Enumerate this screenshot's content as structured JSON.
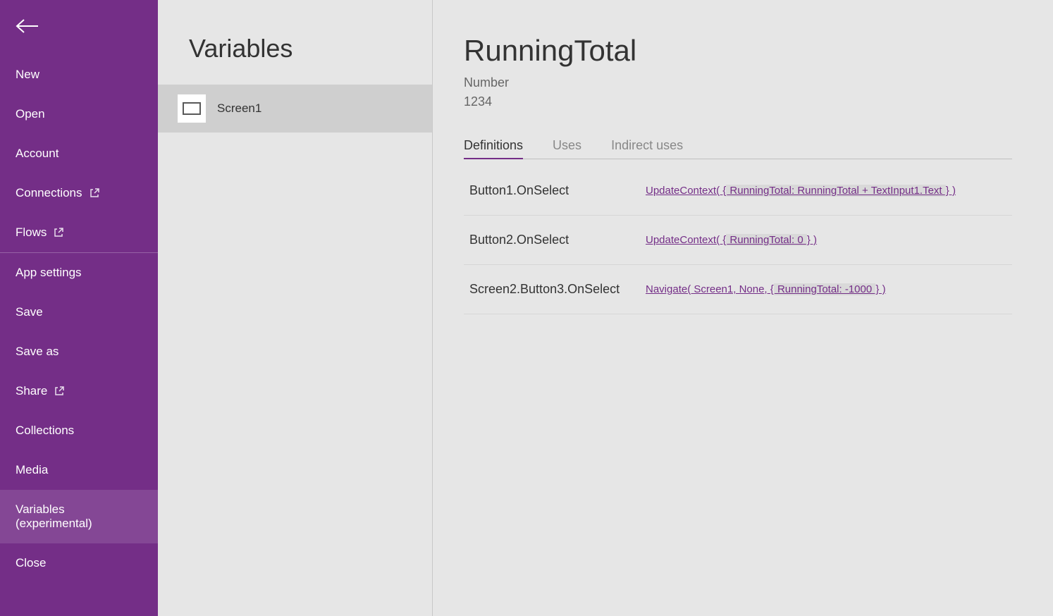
{
  "colors": {
    "sidebar_bg": "#742e87",
    "content_bg": "#e6e6e6",
    "selected_row_bg": "#cfcfcf",
    "link_color": "#742e87",
    "highlight_bg": "#d9d9d9",
    "text_primary": "#333333",
    "text_secondary": "#666666"
  },
  "sidebar": {
    "items": [
      {
        "label": "New",
        "external": false
      },
      {
        "label": "Open",
        "external": false
      },
      {
        "label": "Account",
        "external": false
      },
      {
        "label": "Connections",
        "external": true
      },
      {
        "label": "Flows",
        "external": true
      },
      {
        "label": "App settings",
        "external": false,
        "divider_before": true
      },
      {
        "label": "Save",
        "external": false
      },
      {
        "label": "Save as",
        "external": false
      },
      {
        "label": "Share",
        "external": true
      },
      {
        "label": "Collections",
        "external": false
      },
      {
        "label": "Media",
        "external": false
      },
      {
        "label": "Variables (experimental)",
        "external": false,
        "active": true
      },
      {
        "label": "Close",
        "external": false
      }
    ]
  },
  "mid": {
    "title": "Variables",
    "screens": [
      {
        "label": "Screen1",
        "selected": true
      }
    ]
  },
  "detail": {
    "variable_name": "RunningTotal",
    "variable_type": "Number",
    "variable_value": "1234",
    "tabs": [
      {
        "label": "Definitions",
        "active": true
      },
      {
        "label": "Uses",
        "active": false
      },
      {
        "label": "Indirect uses",
        "active": false
      }
    ],
    "definitions": [
      {
        "source": "Button1.OnSelect",
        "formula_pre": "UpdateContext( {",
        "formula_hl": " RunningTotal: RunningTotal + TextInput1.Text ",
        "formula_post": "} )"
      },
      {
        "source": "Button2.OnSelect",
        "formula_pre": "UpdateContext( {",
        "formula_hl": " RunningTotal: 0 ",
        "formula_post": "} )"
      },
      {
        "source": "Screen2.Button3.OnSelect",
        "formula_pre": "Navigate( Screen1, None, {",
        "formula_hl": " RunningTotal: -1000 ",
        "formula_post": "} )"
      }
    ]
  }
}
